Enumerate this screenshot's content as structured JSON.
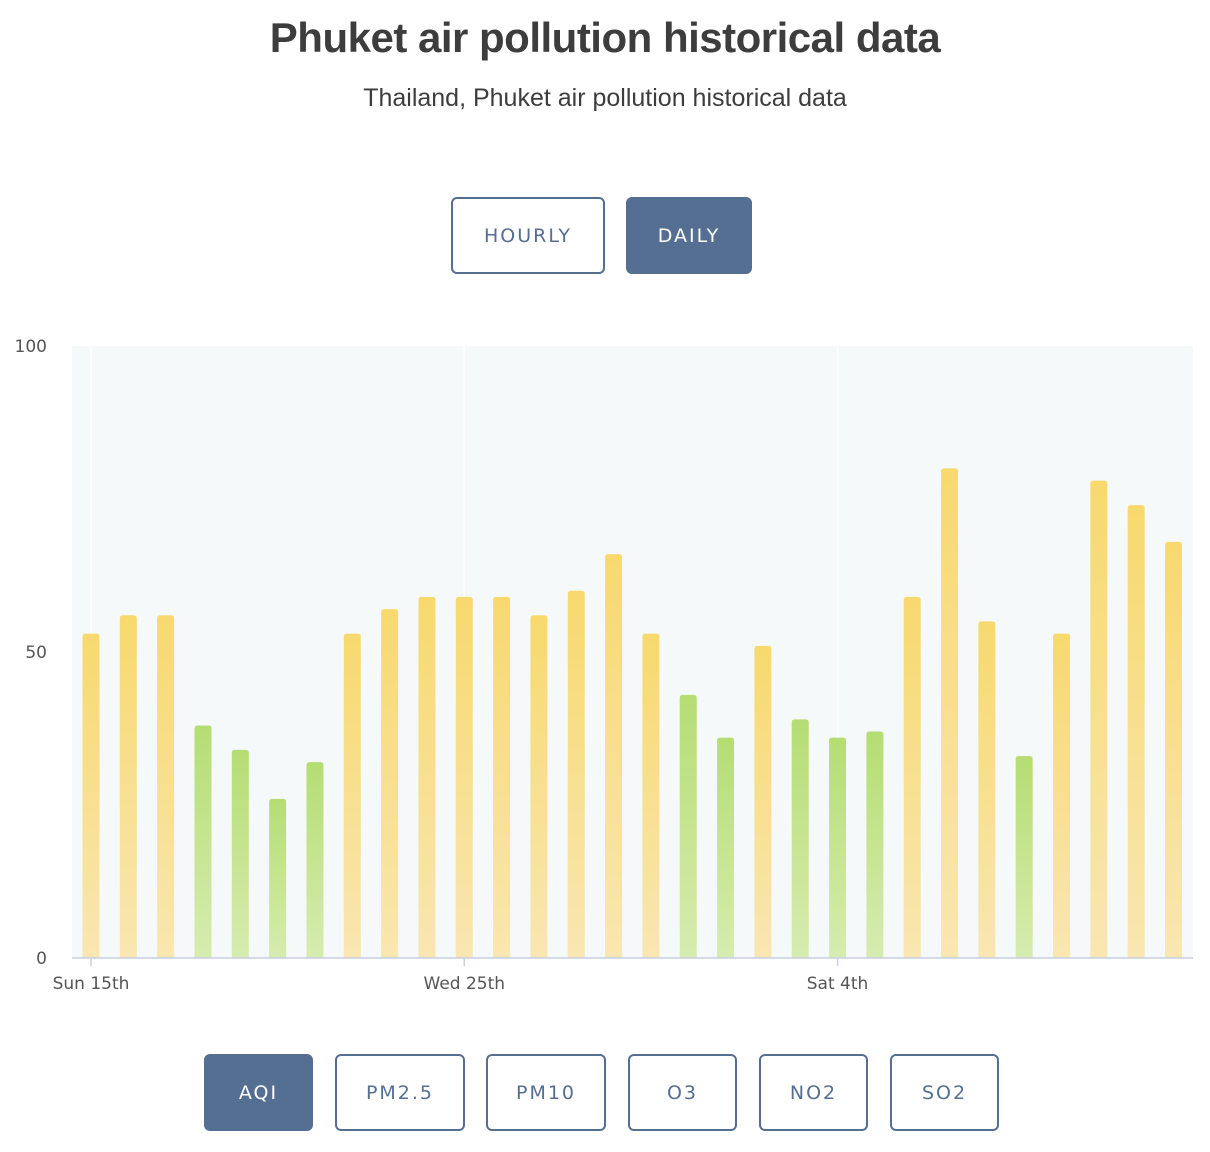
{
  "header": {
    "title": "Phuket air pollution historical data",
    "subtitle": "Thailand, Phuket air pollution historical data"
  },
  "range_toggle": {
    "hourly_label": "HOURLY",
    "daily_label": "DAILY",
    "selected": "DAILY"
  },
  "metric_tabs": {
    "items": [
      "AQI",
      "PM2.5",
      "PM10",
      "O3",
      "NO2",
      "SO2"
    ],
    "selected": "AQI"
  },
  "colors": {
    "accent": "#546f91",
    "good_green": "#b5dd73",
    "moderate_yellow": "#f7d96e",
    "plot_background": "#f5f9f9"
  },
  "chart_data": {
    "type": "bar",
    "categories": [
      "Sun 15th",
      "",
      "",
      "",
      "",
      "",
      "",
      "",
      "",
      "",
      "Wed 25th",
      "",
      "",
      "",
      "",
      "",
      "",
      "",
      "",
      "",
      "Sat 4th",
      "",
      "",
      "",
      "",
      "",
      "",
      "",
      "",
      ""
    ],
    "values": [
      53,
      56,
      56,
      38,
      34,
      26,
      32,
      53,
      57,
      59,
      59,
      59,
      56,
      60,
      66,
      53,
      43,
      36,
      51,
      39,
      36,
      37,
      59,
      80,
      55,
      33,
      53,
      78,
      74,
      68
    ],
    "xticks": [
      "Sun 15th",
      "Wed 25th",
      "Sat 4th"
    ],
    "yticks": [
      0,
      50,
      100
    ],
    "ylim": [
      0,
      100
    ],
    "green_below": 51,
    "title": "",
    "xlabel": "",
    "ylabel": "",
    "grid": "vertical at labeled ticks"
  }
}
